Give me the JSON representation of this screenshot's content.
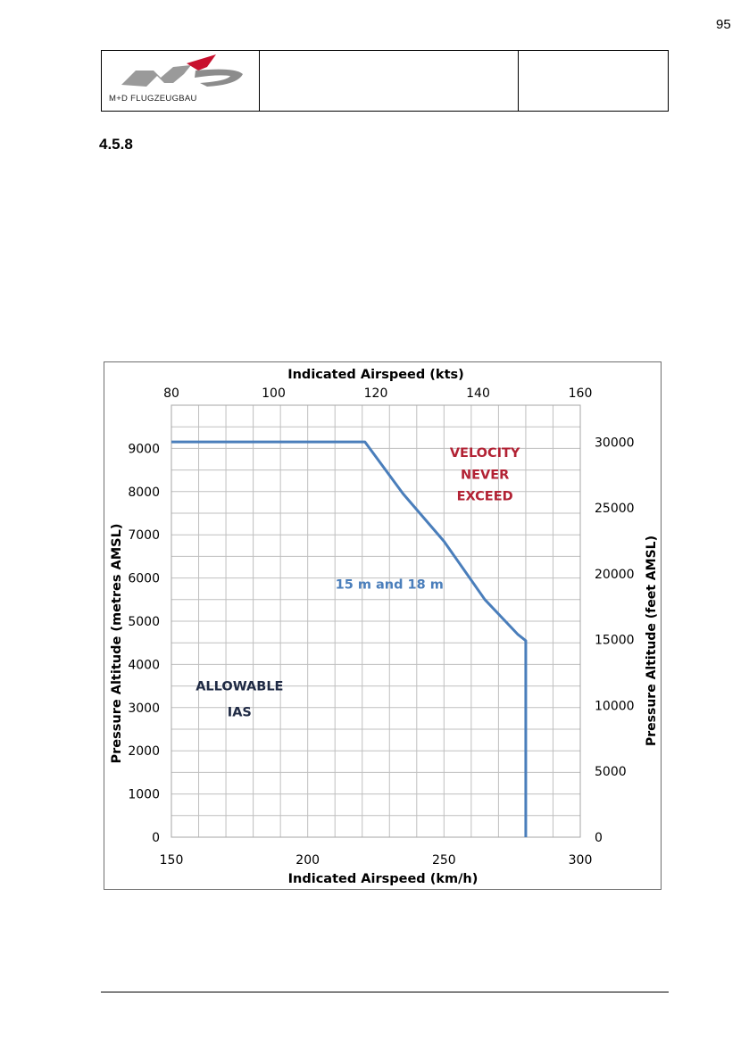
{
  "page": {
    "page_number": "95"
  },
  "header": {
    "logo_text": "M+D FLUGZEUGBAU",
    "middle_cell": "",
    "right_cell": ""
  },
  "section": {
    "number": "4.5.8"
  },
  "chart_data": {
    "type": "line",
    "title": "",
    "xlabel": "Indicated Airspeed (km/h)",
    "x2label": "Indicated Airspeed (kts)",
    "ylabel": "Pressure Altitude (metres AMSL)",
    "y2label": "Pressure Altitude (feet AMSL)",
    "xlim": [
      150,
      300
    ],
    "x2lim": [
      80,
      160
    ],
    "ylim": [
      0,
      10000
    ],
    "y2lim": [
      0,
      32808
    ],
    "x_ticks": [
      "150",
      "200",
      "250",
      "300"
    ],
    "x2_ticks": [
      "80",
      "100",
      "120",
      "140",
      "160"
    ],
    "y_ticks": [
      "0",
      "1000",
      "2000",
      "3000",
      "4000",
      "5000",
      "6000",
      "7000",
      "8000",
      "9000"
    ],
    "y2_ticks": [
      "0",
      "5000",
      "10000",
      "15000",
      "20000",
      "25000",
      "30000"
    ],
    "grid": true,
    "series": [
      {
        "name": "15 m and 18 m",
        "color": "#4a7ebb",
        "points": [
          {
            "x": 150,
            "y": 9150
          },
          {
            "x": 221,
            "y": 9150
          },
          {
            "x": 235,
            "y": 7950
          },
          {
            "x": 250,
            "y": 6850
          },
          {
            "x": 265,
            "y": 5500
          },
          {
            "x": 277,
            "y": 4700
          },
          {
            "x": 280,
            "y": 4550
          },
          {
            "x": 280,
            "y": 0
          }
        ]
      }
    ],
    "annotations": [
      {
        "text": "VELOCITY",
        "color": "#b22234",
        "x": 265,
        "y": 8800
      },
      {
        "text": "NEVER",
        "color": "#b22234",
        "x": 265,
        "y": 8300
      },
      {
        "text": "EXCEED",
        "color": "#b22234",
        "x": 265,
        "y": 7800
      },
      {
        "text": "15 m and 18 m",
        "color": "#4a7ebb",
        "x": 230,
        "y": 5750
      },
      {
        "text": "ALLOWABLE",
        "color": "#1f2a44",
        "x": 175,
        "y": 3400
      },
      {
        "text": "IAS",
        "color": "#1f2a44",
        "x": 175,
        "y": 2800
      }
    ]
  }
}
